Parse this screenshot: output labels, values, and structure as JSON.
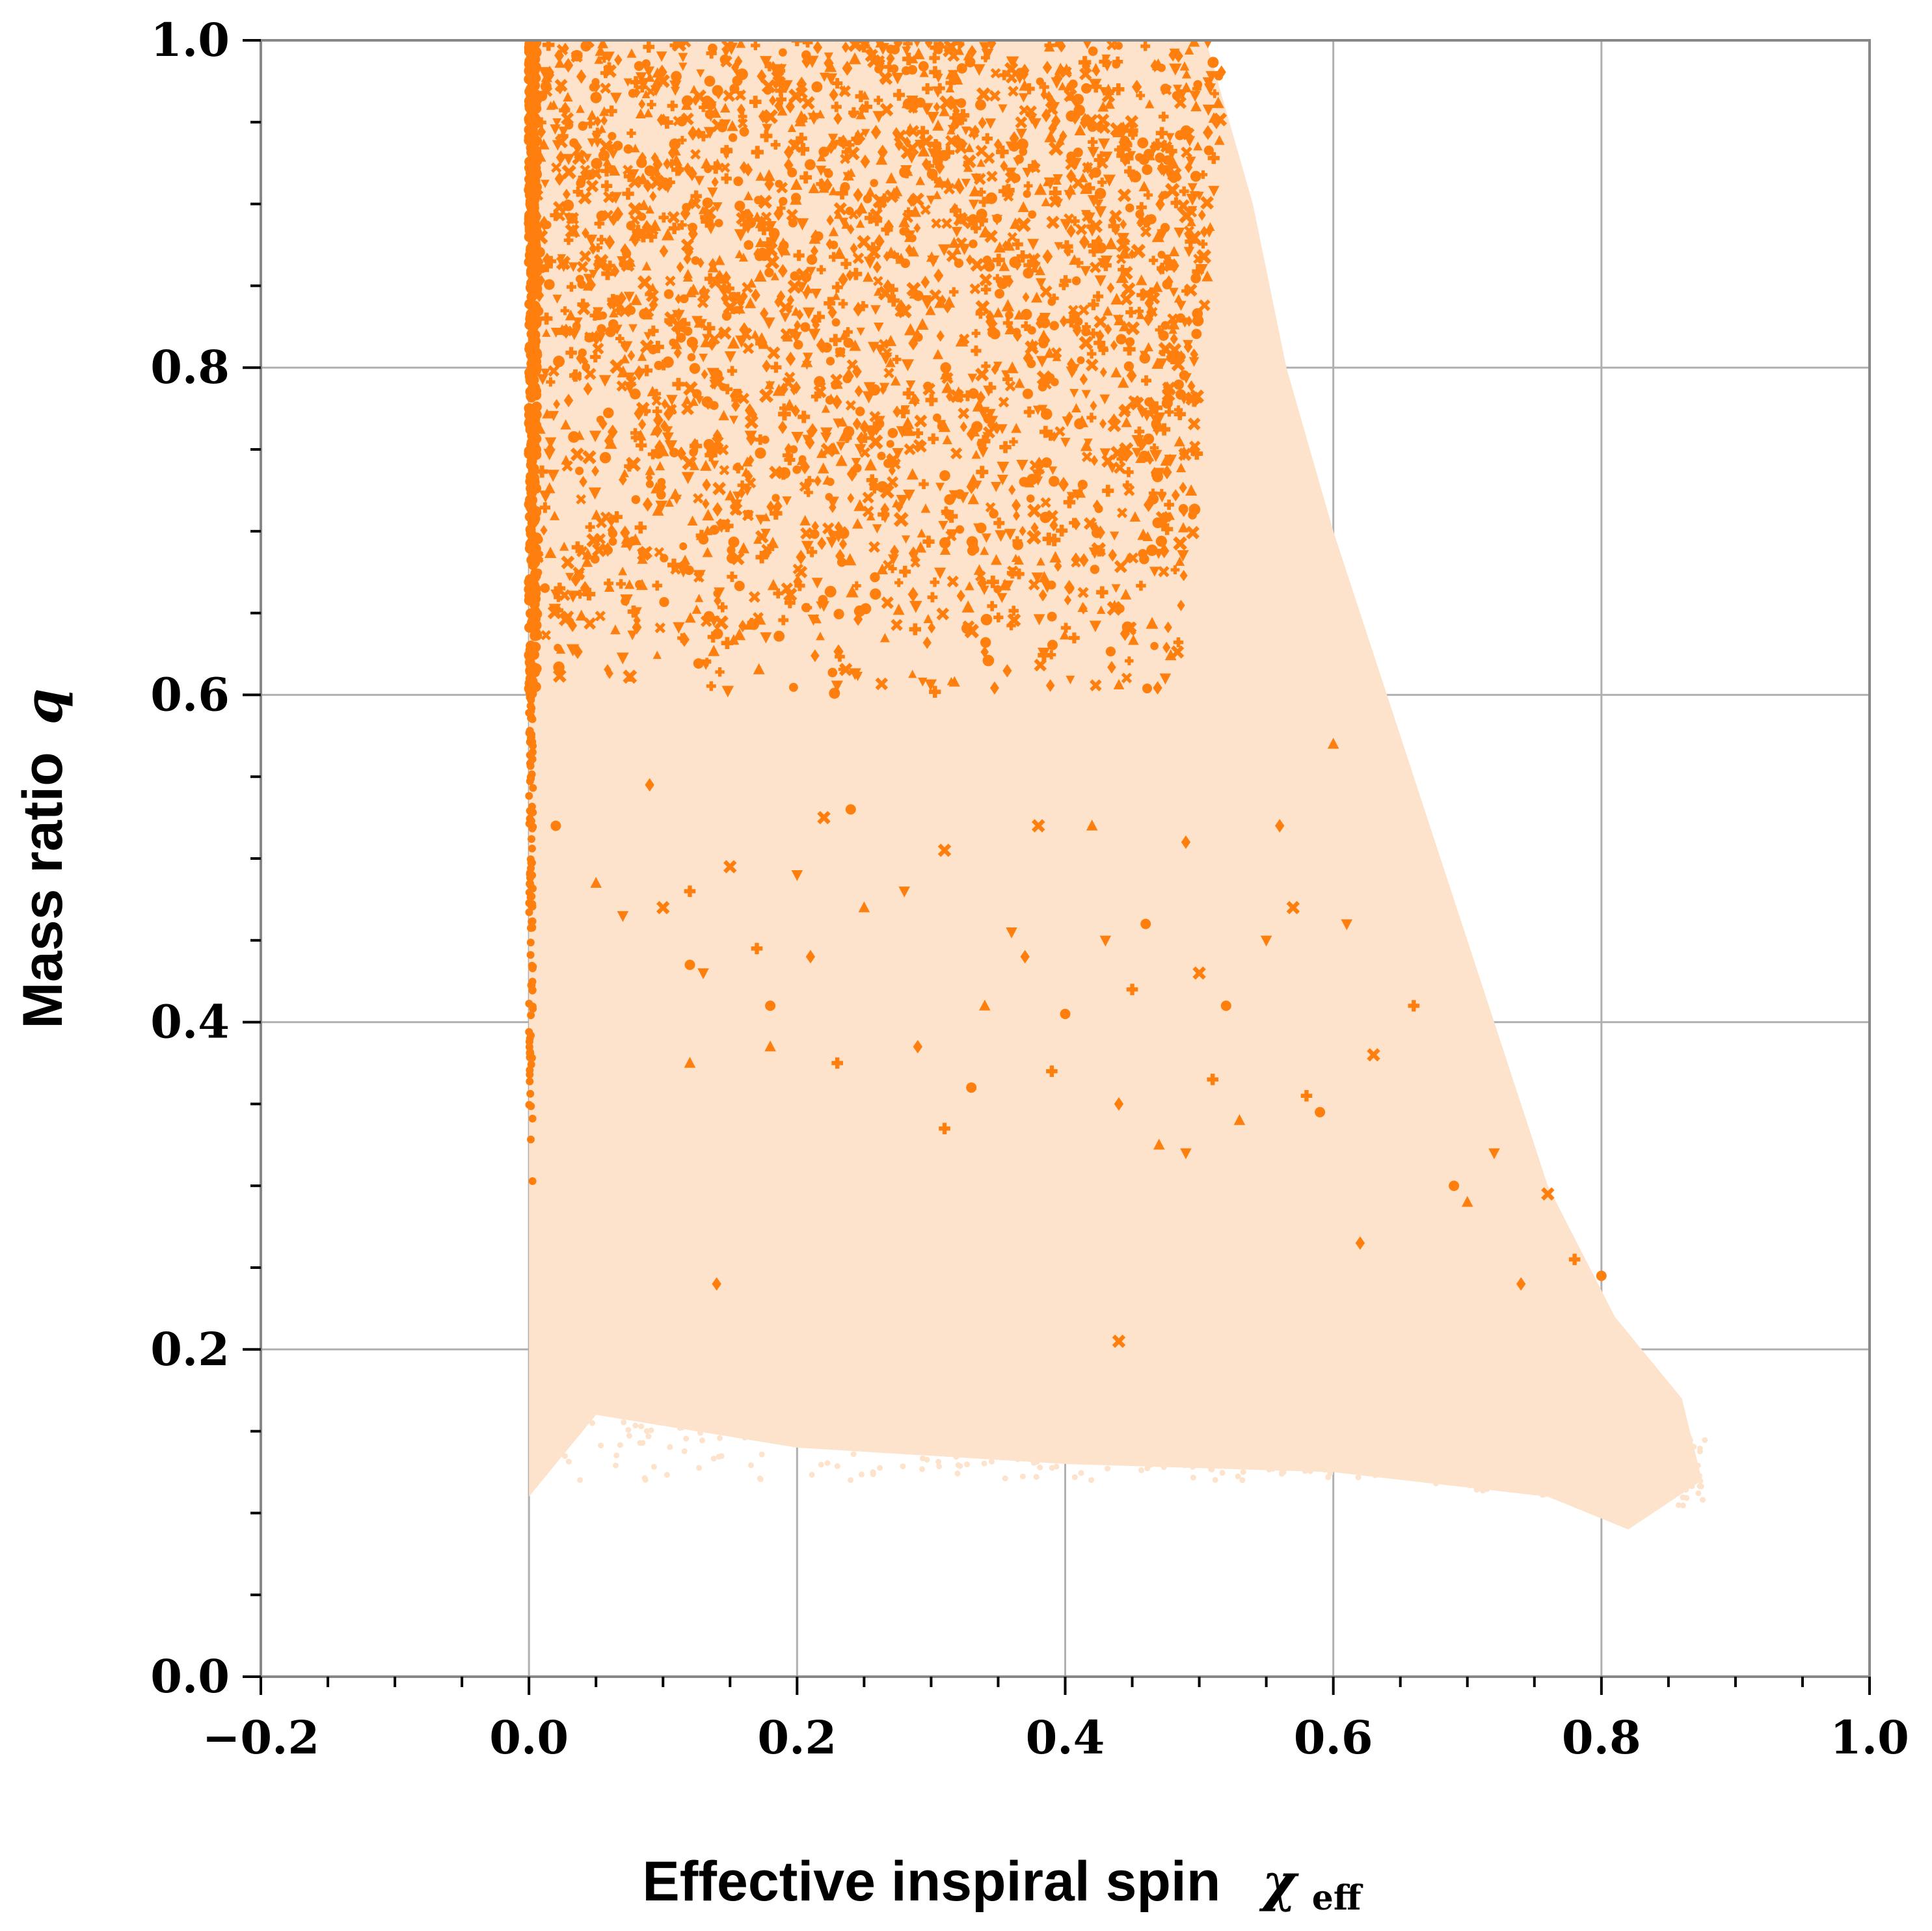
{
  "chart_data": {
    "type": "scatter",
    "title": "",
    "xlabel": "Effective inspiral spin",
    "xlabel_symbol": "χ",
    "xlabel_subscript": "eff",
    "ylabel": "Mass ratio",
    "ylabel_symbol": "q",
    "xlim": [
      -0.2,
      1.0
    ],
    "ylim": [
      0.0,
      1.0
    ],
    "xticks": [
      -0.2,
      0.0,
      0.2,
      0.4,
      0.6,
      0.8,
      1.0
    ],
    "yticks": [
      0.0,
      0.2,
      0.4,
      0.6,
      0.8,
      1.0
    ],
    "xtick_labels": [
      "−0.2",
      "0.0",
      "0.2",
      "0.4",
      "0.6",
      "0.8",
      "1.0"
    ],
    "ytick_labels": [
      "0.0",
      "0.2",
      "0.4",
      "0.6",
      "0.8",
      "1.0"
    ],
    "x_minor_step": 0.05,
    "y_minor_step": 0.05,
    "grid": true,
    "legend": "none",
    "colors": {
      "prior_region": "#fde3cc",
      "samples": "#ff7f0e",
      "grid": "#b0b0b0",
      "axes": "#888888"
    },
    "series": [
      {
        "kind": "background-distribution",
        "color": "#fde3cc",
        "boundary": [
          [
            0.0,
            1.0
          ],
          [
            0.505,
            1.0
          ],
          [
            0.54,
            0.9
          ],
          [
            0.565,
            0.8
          ],
          [
            0.6,
            0.7
          ],
          [
            0.64,
            0.6
          ],
          [
            0.68,
            0.5
          ],
          [
            0.72,
            0.4
          ],
          [
            0.76,
            0.3
          ],
          [
            0.81,
            0.22
          ],
          [
            0.86,
            0.17
          ],
          [
            0.875,
            0.12
          ],
          [
            0.82,
            0.09
          ],
          [
            0.76,
            0.11
          ],
          [
            0.6,
            0.125
          ],
          [
            0.4,
            0.13
          ],
          [
            0.2,
            0.14
          ],
          [
            0.05,
            0.16
          ],
          [
            0.0,
            0.11
          ]
        ]
      },
      {
        "kind": "samples-dense",
        "color": "#ff7f0e",
        "x_range": [
          0.0,
          0.52
        ],
        "y_range": [
          0.6,
          1.0
        ]
      },
      {
        "kind": "samples-edge",
        "color": "#ff7f0e",
        "x": 0.0,
        "y_range": [
          0.28,
          1.0
        ]
      },
      {
        "kind": "samples-sparse",
        "color": "#ff7f0e",
        "points": [
          [
            0.02,
            0.52
          ],
          [
            0.05,
            0.485
          ],
          [
            0.07,
            0.465
          ],
          [
            0.09,
            0.545
          ],
          [
            0.1,
            0.47
          ],
          [
            0.12,
            0.48
          ],
          [
            0.12,
            0.435
          ],
          [
            0.12,
            0.375
          ],
          [
            0.13,
            0.43
          ],
          [
            0.14,
            0.24
          ],
          [
            0.15,
            0.495
          ],
          [
            0.17,
            0.445
          ],
          [
            0.18,
            0.41
          ],
          [
            0.18,
            0.385
          ],
          [
            0.2,
            0.49
          ],
          [
            0.21,
            0.44
          ],
          [
            0.22,
            0.525
          ],
          [
            0.23,
            0.375
          ],
          [
            0.24,
            0.53
          ],
          [
            0.25,
            0.47
          ],
          [
            0.28,
            0.48
          ],
          [
            0.29,
            0.385
          ],
          [
            0.31,
            0.505
          ],
          [
            0.31,
            0.335
          ],
          [
            0.33,
            0.36
          ],
          [
            0.34,
            0.41
          ],
          [
            0.36,
            0.455
          ],
          [
            0.37,
            0.44
          ],
          [
            0.38,
            0.52
          ],
          [
            0.39,
            0.37
          ],
          [
            0.4,
            0.405
          ],
          [
            0.42,
            0.52
          ],
          [
            0.43,
            0.45
          ],
          [
            0.44,
            0.35
          ],
          [
            0.44,
            0.205
          ],
          [
            0.45,
            0.42
          ],
          [
            0.46,
            0.46
          ],
          [
            0.47,
            0.325
          ],
          [
            0.49,
            0.32
          ],
          [
            0.49,
            0.51
          ],
          [
            0.5,
            0.43
          ],
          [
            0.51,
            0.365
          ],
          [
            0.52,
            0.41
          ],
          [
            0.53,
            0.34
          ],
          [
            0.55,
            0.45
          ],
          [
            0.56,
            0.52
          ],
          [
            0.57,
            0.47
          ],
          [
            0.58,
            0.355
          ],
          [
            0.59,
            0.345
          ],
          [
            0.6,
            0.57
          ],
          [
            0.61,
            0.46
          ],
          [
            0.62,
            0.265
          ],
          [
            0.63,
            0.38
          ],
          [
            0.66,
            0.41
          ],
          [
            0.69,
            0.3
          ],
          [
            0.7,
            0.29
          ],
          [
            0.72,
            0.32
          ],
          [
            0.74,
            0.24
          ],
          [
            0.76,
            0.295
          ],
          [
            0.78,
            0.255
          ],
          [
            0.8,
            0.245
          ]
        ]
      }
    ]
  }
}
